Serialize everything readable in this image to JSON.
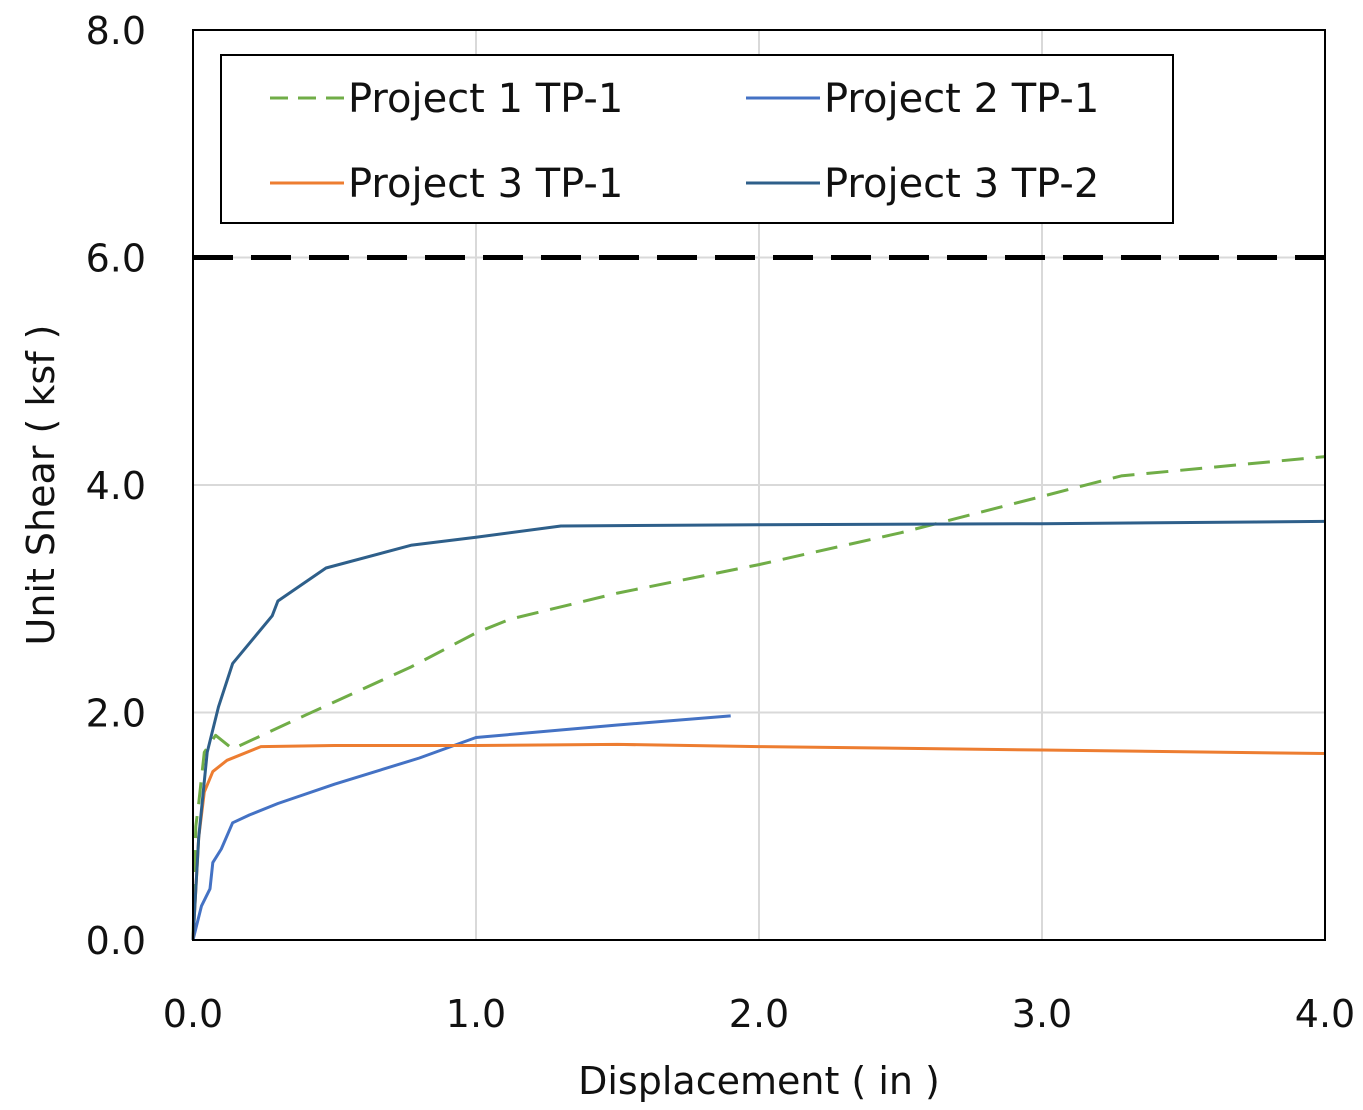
{
  "chart_data": {
    "type": "line",
    "title": "",
    "xlabel": "Displacement ( in )",
    "ylabel": "Unit Shear ( ksf )",
    "xlim": [
      0,
      4
    ],
    "ylim": [
      0,
      8
    ],
    "x_ticks": [
      "0.0",
      "1.0",
      "2.0",
      "3.0",
      "4.0"
    ],
    "y_ticks": [
      "0.0",
      "2.0",
      "4.0",
      "6.0",
      "8.0"
    ],
    "grid": true,
    "legend_position": "top",
    "reference_line": {
      "y": 6.0,
      "style": "dashed",
      "color": "#000000"
    },
    "series": [
      {
        "name": "Project 1 TP-1",
        "color": "#70ad47",
        "dash": true,
        "points": [
          [
            0,
            0
          ],
          [
            0.01,
            1.0
          ],
          [
            0.02,
            1.2
          ],
          [
            0.04,
            1.65
          ],
          [
            0.08,
            1.8
          ],
          [
            0.14,
            1.68
          ],
          [
            0.4,
            1.98
          ],
          [
            0.77,
            2.4
          ],
          [
            1.0,
            2.7
          ],
          [
            1.12,
            2.82
          ],
          [
            1.5,
            3.05
          ],
          [
            2.0,
            3.3
          ],
          [
            2.5,
            3.58
          ],
          [
            3.0,
            3.9
          ],
          [
            3.28,
            4.08
          ],
          [
            4.0,
            4.25
          ]
        ]
      },
      {
        "name": "Project 2 TP-1",
        "color": "#4472c4",
        "dash": false,
        "points": [
          [
            0,
            0
          ],
          [
            0.01,
            0.1
          ],
          [
            0.03,
            0.3
          ],
          [
            0.06,
            0.45
          ],
          [
            0.07,
            0.68
          ],
          [
            0.1,
            0.8
          ],
          [
            0.14,
            1.03
          ],
          [
            0.2,
            1.1
          ],
          [
            0.3,
            1.2
          ],
          [
            0.5,
            1.37
          ],
          [
            0.8,
            1.6
          ],
          [
            1.0,
            1.78
          ],
          [
            1.5,
            1.89
          ],
          [
            1.9,
            1.97
          ]
        ]
      },
      {
        "name": "Project 3 TP-1",
        "color": "#ed7d31",
        "dash": false,
        "points": [
          [
            0,
            0
          ],
          [
            0.02,
            0.9
          ],
          [
            0.04,
            1.3
          ],
          [
            0.07,
            1.48
          ],
          [
            0.12,
            1.58
          ],
          [
            0.24,
            1.7
          ],
          [
            0.5,
            1.71
          ],
          [
            1.0,
            1.71
          ],
          [
            1.5,
            1.72
          ],
          [
            2.0,
            1.7
          ],
          [
            3.0,
            1.67
          ],
          [
            4.0,
            1.64
          ]
        ]
      },
      {
        "name": "Project 3 TP-2",
        "color": "#2e5f8a",
        "dash": false,
        "points": [
          [
            0,
            0
          ],
          [
            0.02,
            0.9
          ],
          [
            0.05,
            1.65
          ],
          [
            0.09,
            2.05
          ],
          [
            0.14,
            2.43
          ],
          [
            0.28,
            2.85
          ],
          [
            0.3,
            2.98
          ],
          [
            0.47,
            3.27
          ],
          [
            0.77,
            3.47
          ],
          [
            1.0,
            3.54
          ],
          [
            1.3,
            3.64
          ],
          [
            2.0,
            3.65
          ],
          [
            3.0,
            3.66
          ],
          [
            4.0,
            3.68
          ]
        ]
      }
    ]
  }
}
